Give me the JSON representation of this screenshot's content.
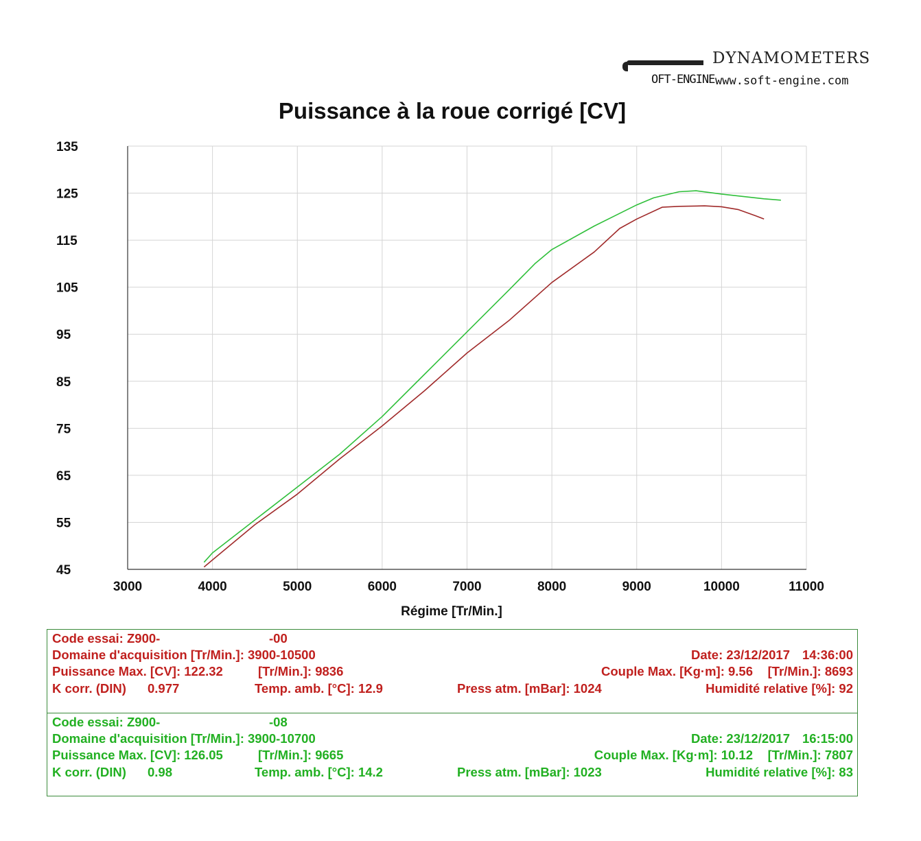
{
  "logo": {
    "brand": "DYNAMOMETERS",
    "soft": "OFT-ENGINE",
    "url": "www.soft-engine.com"
  },
  "chart_data": {
    "type": "line",
    "title": "Puissance à la roue corrigé [CV]",
    "xlabel": "Régime [Tr/Min.]",
    "ylabel": "",
    "xlim": [
      3000,
      11000
    ],
    "ylim": [
      45,
      135
    ],
    "xticks": [
      "3000",
      "4000",
      "5000",
      "6000",
      "7000",
      "8000",
      "9000",
      "10000",
      "11000"
    ],
    "yticks": [
      "45",
      "55",
      "65",
      "75",
      "85",
      "95",
      "105",
      "115",
      "125",
      "135"
    ],
    "grid": true,
    "series": [
      {
        "name": "Code essai: Z900- -00",
        "color": "#a02a2a",
        "x": [
          3900,
          4000,
          4500,
          5000,
          5500,
          6000,
          6500,
          7000,
          7500,
          8000,
          8500,
          8800,
          9000,
          9300,
          9500,
          9800,
          10000,
          10200,
          10400,
          10500
        ],
        "y": [
          45.5,
          47,
          54.5,
          61,
          68.5,
          75.5,
          83,
          91,
          98,
          106,
          112.5,
          117.5,
          119.5,
          122,
          122.2,
          122.3,
          122.1,
          121.5,
          120.2,
          119.5
        ]
      },
      {
        "name": "Code essai: Z900- -08",
        "color": "#2fbf3a",
        "x": [
          3900,
          4000,
          4500,
          5000,
          5500,
          6000,
          6500,
          7000,
          7500,
          7800,
          8000,
          8500,
          9000,
          9200,
          9500,
          9700,
          10000,
          10200,
          10500,
          10700
        ],
        "y": [
          46.5,
          48.5,
          55.5,
          62.5,
          69.5,
          77.5,
          86.5,
          95.5,
          104.5,
          110,
          113,
          118,
          122.5,
          124,
          125.3,
          125.5,
          124.8,
          124.4,
          123.8,
          123.5
        ]
      }
    ]
  },
  "tests": [
    {
      "code": "Code essai: Z900-",
      "code_suffix": "-00",
      "domaine": "Domaine d'acquisition [Tr/Min.]: 3900-10500",
      "date": "Date: 23/12/2017",
      "time": "14:36:00",
      "puissance": "Puissance Max. [CV]: 122.32",
      "puissance_rpm": "[Tr/Min.]: 9836",
      "couple": "Couple Max. [Kg·m]: 9.56",
      "couple_rpm": "[Tr/Min.]: 8693",
      "kcorr": "K corr. (DIN)",
      "kcorr_value": "0.977",
      "temp": "Temp. amb. [°C]: 12.9",
      "press": "Press atm. [mBar]: 1024",
      "humid": "Humidité relative [%]: 92"
    },
    {
      "code": "Code essai: Z900-",
      "code_suffix": "-08",
      "domaine": "Domaine d'acquisition [Tr/Min.]: 3900-10700",
      "date": "Date: 23/12/2017",
      "time": "16:15:00",
      "puissance": "Puissance Max. [CV]: 126.05",
      "puissance_rpm": "[Tr/Min.]: 9665",
      "couple": "Couple Max. [Kg·m]: 10.12",
      "couple_rpm": "[Tr/Min.]: 7807",
      "kcorr": "K corr. (DIN)",
      "kcorr_value": "0.98",
      "temp": "Temp. amb. [°C]: 14.2",
      "press": "Press atm. [mBar]: 1023",
      "humid": "Humidité relative [%]: 83"
    }
  ]
}
